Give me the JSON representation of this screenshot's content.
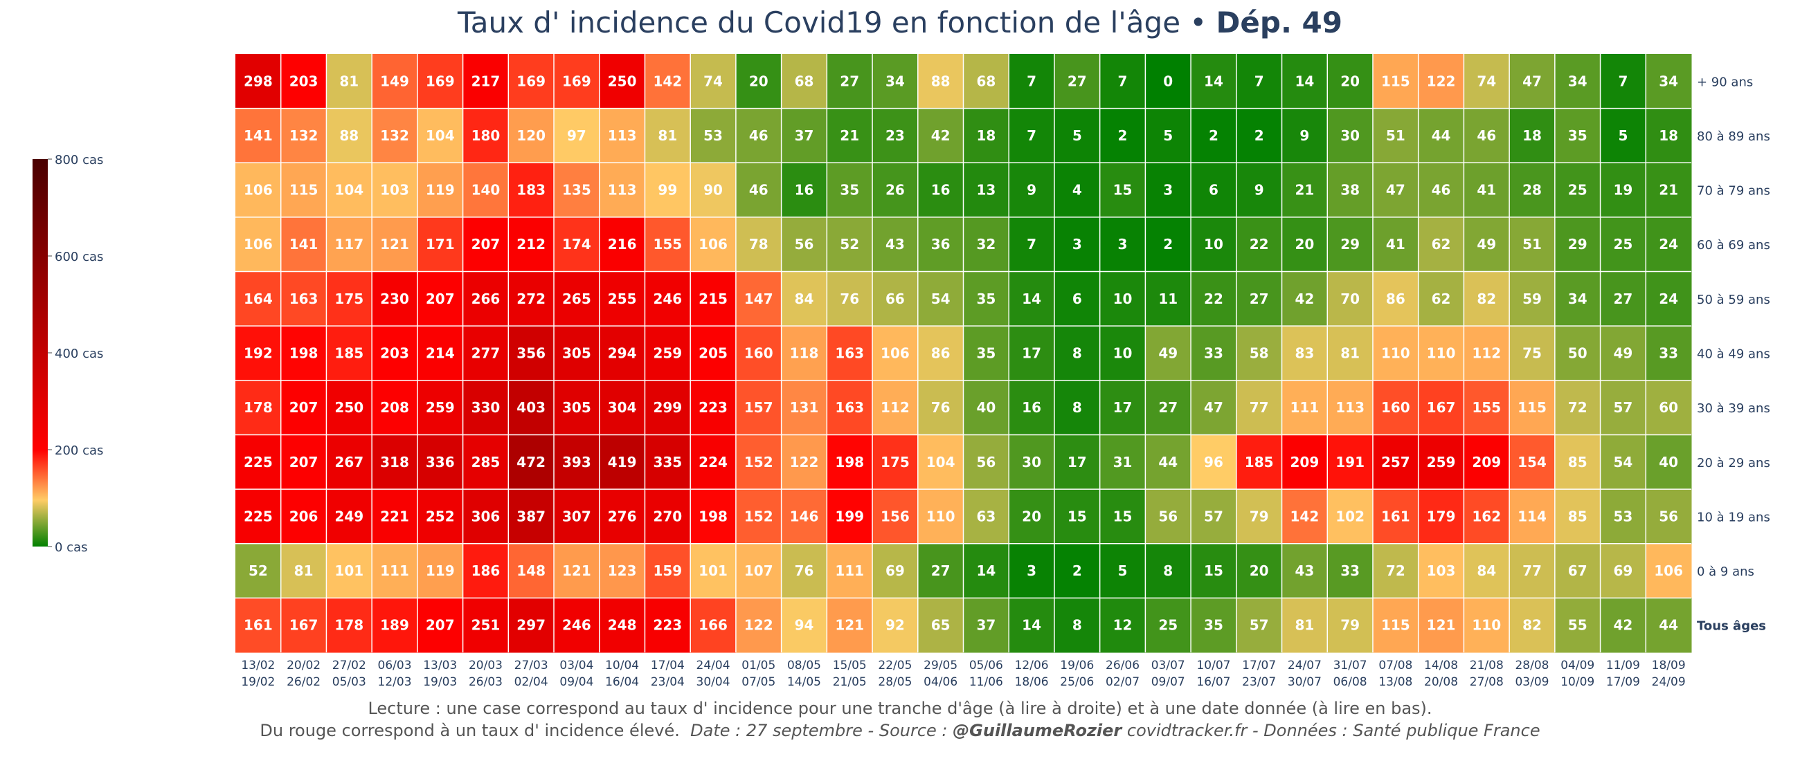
{
  "title": {
    "main": "Taux d' incidence du Covid19 en fonction de l'âge",
    "separator": "•",
    "dept": "Dép. 49"
  },
  "caption": {
    "line1": "Lecture : une case correspond au taux d' incidence pour une tranche d'âge (à lire à droite) et à une date donnée (à lire en bas).",
    "line2_plain": "Du rouge correspond à un taux d' incidence élevé.",
    "line2_italic_a": "Date : 27 septembre - Source :",
    "line2_bold": "@GuillaumeRozier",
    "line2_italic_b": "covidtracker.fr - Données : Santé publique France"
  },
  "colors": {
    "green_low": "#008000",
    "yellow_mid": "#ffcc66",
    "red_high": "#ff0000",
    "dark_max": "#4a0000",
    "axis_text": "#2a3f5f",
    "cell_text": "#ffffff"
  },
  "chart_data": {
    "type": "heatmap",
    "title": "Taux d' incidence du Covid19 en fonction de l'âge • Dép. 49",
    "x": [
      [
        "13/02",
        "19/02"
      ],
      [
        "20/02",
        "26/02"
      ],
      [
        "27/02",
        "05/03"
      ],
      [
        "06/03",
        "12/03"
      ],
      [
        "13/03",
        "19/03"
      ],
      [
        "20/03",
        "26/03"
      ],
      [
        "27/03",
        "02/04"
      ],
      [
        "03/04",
        "09/04"
      ],
      [
        "10/04",
        "16/04"
      ],
      [
        "17/04",
        "23/04"
      ],
      [
        "24/04",
        "30/04"
      ],
      [
        "01/05",
        "07/05"
      ],
      [
        "08/05",
        "14/05"
      ],
      [
        "15/05",
        "21/05"
      ],
      [
        "22/05",
        "28/05"
      ],
      [
        "29/05",
        "04/06"
      ],
      [
        "05/06",
        "11/06"
      ],
      [
        "12/06",
        "18/06"
      ],
      [
        "19/06",
        "25/06"
      ],
      [
        "26/06",
        "02/07"
      ],
      [
        "03/07",
        "09/07"
      ],
      [
        "10/07",
        "16/07"
      ],
      [
        "17/07",
        "23/07"
      ],
      [
        "24/07",
        "30/07"
      ],
      [
        "31/07",
        "06/08"
      ],
      [
        "07/08",
        "13/08"
      ],
      [
        "14/08",
        "20/08"
      ],
      [
        "21/08",
        "27/08"
      ],
      [
        "28/08",
        "03/09"
      ],
      [
        "04/09",
        "10/09"
      ],
      [
        "11/09",
        "17/09"
      ],
      [
        "18/09",
        "24/09"
      ]
    ],
    "y": [
      "+ 90 ans",
      "80 à 89 ans",
      "70 à 79 ans",
      "60 à 69 ans",
      "50 à 59 ans",
      "40 à 49 ans",
      "30 à 39 ans",
      "20 à 29 ans",
      "10 à 19 ans",
      "0 à 9 ans",
      "Tous âges"
    ],
    "z": [
      [
        298,
        203,
        81,
        149,
        169,
        217,
        169,
        169,
        250,
        142,
        74,
        20,
        68,
        27,
        34,
        88,
        68,
        7,
        27,
        7,
        0,
        14,
        7,
        14,
        20,
        115,
        122,
        74,
        47,
        34,
        7,
        34
      ],
      [
        141,
        132,
        88,
        132,
        104,
        180,
        120,
        97,
        113,
        81,
        53,
        46,
        37,
        21,
        23,
        42,
        18,
        7,
        5,
        2,
        5,
        2,
        2,
        9,
        30,
        51,
        44,
        46,
        18,
        35,
        5,
        18
      ],
      [
        106,
        115,
        104,
        103,
        119,
        140,
        183,
        135,
        113,
        99,
        90,
        46,
        16,
        35,
        26,
        16,
        13,
        9,
        4,
        15,
        3,
        6,
        9,
        21,
        38,
        47,
        46,
        41,
        28,
        25,
        19,
        21
      ],
      [
        106,
        141,
        117,
        121,
        171,
        207,
        212,
        174,
        216,
        155,
        106,
        78,
        56,
        52,
        43,
        36,
        32,
        7,
        3,
        3,
        2,
        10,
        22,
        20,
        29,
        41,
        62,
        49,
        51,
        29,
        25,
        24
      ],
      [
        164,
        163,
        175,
        230,
        207,
        266,
        272,
        265,
        255,
        246,
        215,
        147,
        84,
        76,
        66,
        54,
        35,
        14,
        6,
        10,
        11,
        22,
        27,
        42,
        70,
        86,
        62,
        82,
        59,
        34,
        27,
        24
      ],
      [
        192,
        198,
        185,
        203,
        214,
        277,
        356,
        305,
        294,
        259,
        205,
        160,
        118,
        163,
        106,
        86,
        35,
        17,
        8,
        10,
        49,
        33,
        58,
        83,
        81,
        110,
        110,
        112,
        75,
        50,
        49,
        33
      ],
      [
        178,
        207,
        250,
        208,
        259,
        330,
        403,
        305,
        304,
        299,
        223,
        157,
        131,
        163,
        112,
        76,
        40,
        16,
        8,
        17,
        27,
        47,
        77,
        111,
        113,
        160,
        167,
        155,
        115,
        72,
        57,
        60
      ],
      [
        225,
        207,
        267,
        318,
        336,
        285,
        472,
        393,
        419,
        335,
        224,
        152,
        122,
        198,
        175,
        104,
        56,
        30,
        17,
        31,
        44,
        96,
        185,
        209,
        191,
        257,
        259,
        209,
        154,
        85,
        54,
        40
      ],
      [
        225,
        206,
        249,
        221,
        252,
        306,
        387,
        307,
        276,
        270,
        198,
        152,
        146,
        199,
        156,
        110,
        63,
        20,
        15,
        15,
        56,
        57,
        79,
        142,
        102,
        161,
        179,
        162,
        114,
        85,
        53,
        56
      ],
      [
        52,
        81,
        101,
        111,
        119,
        186,
        148,
        121,
        123,
        159,
        101,
        107,
        76,
        111,
        69,
        27,
        14,
        3,
        2,
        5,
        8,
        15,
        20,
        43,
        33,
        72,
        103,
        84,
        77,
        67,
        69,
        106
      ],
      [
        161,
        167,
        178,
        189,
        207,
        251,
        297,
        246,
        248,
        223,
        166,
        122,
        94,
        121,
        92,
        65,
        37,
        14,
        8,
        12,
        25,
        35,
        57,
        81,
        79,
        115,
        121,
        110,
        82,
        55,
        42,
        44
      ]
    ],
    "zlim": [
      0,
      800
    ],
    "colorbar": {
      "ticks": [
        0,
        200,
        400,
        600,
        800
      ],
      "ticktext": [
        "0 cas",
        "200 cas",
        "400 cas",
        "600 cas",
        "800 cas"
      ]
    },
    "bold_row": "Tous âges"
  }
}
